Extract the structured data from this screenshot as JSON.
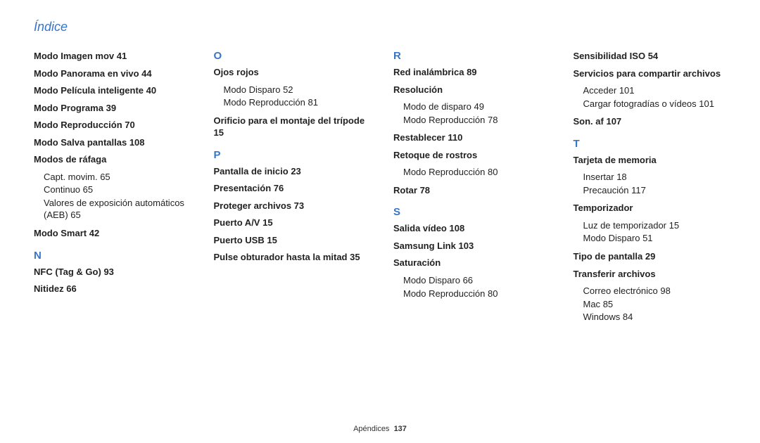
{
  "page": {
    "title": "Índice",
    "footer_label": "Apéndices",
    "footer_page": "137"
  },
  "style": {
    "accent_color": "#3a75c4",
    "body_color": "#222222",
    "bg_color": "#ffffff",
    "title_fontsize": 18,
    "letter_fontsize": 15,
    "entry_fontsize": 13,
    "footer_fontsize": 11
  },
  "columns": [
    {
      "items": [
        {
          "type": "entry",
          "title": "Modo Imagen mov",
          "page": "41"
        },
        {
          "type": "entry",
          "title": "Modo Panorama en vivo",
          "page": "44"
        },
        {
          "type": "entry",
          "title": "Modo Película inteligente",
          "page": "40"
        },
        {
          "type": "entry",
          "title": "Modo Programa",
          "page": "39"
        },
        {
          "type": "entry",
          "title": "Modo Reproducción",
          "page": "70"
        },
        {
          "type": "entry",
          "title": "Modo Salva pantallas",
          "page": "108"
        },
        {
          "type": "entry",
          "title": "Modos de ráfaga",
          "subs": [
            {
              "label": "Capt. movim.",
              "page": "65"
            },
            {
              "label": "Continuo",
              "page": "65"
            },
            {
              "label": "Valores de exposición automáticos (AEB)",
              "page": "65"
            }
          ]
        },
        {
          "type": "entry",
          "title": "Modo Smart",
          "page": "42"
        },
        {
          "type": "letter",
          "letter": "N"
        },
        {
          "type": "entry",
          "title": "NFC (Tag & Go)",
          "page": "93"
        },
        {
          "type": "entry",
          "title": "Nitidez",
          "page": "66"
        }
      ]
    },
    {
      "items": [
        {
          "type": "letter",
          "letter": "O"
        },
        {
          "type": "entry",
          "title": "Ojos rojos",
          "subs": [
            {
              "label": "Modo Disparo",
              "page": "52"
            },
            {
              "label": "Modo Reproducción",
              "page": "81"
            }
          ]
        },
        {
          "type": "entry",
          "title": "Orificio para el montaje del trípode",
          "page": "15"
        },
        {
          "type": "letter",
          "letter": "P"
        },
        {
          "type": "entry",
          "title": "Pantalla de inicio",
          "page": "23"
        },
        {
          "type": "entry",
          "title": "Presentación",
          "page": "76"
        },
        {
          "type": "entry",
          "title": "Proteger archivos",
          "page": "73"
        },
        {
          "type": "entry",
          "title": "Puerto A/V",
          "page": "15"
        },
        {
          "type": "entry",
          "title": "Puerto USB",
          "page": "15"
        },
        {
          "type": "entry",
          "title": "Pulse obturador hasta la mitad",
          "page": "35"
        }
      ]
    },
    {
      "items": [
        {
          "type": "letter",
          "letter": "R"
        },
        {
          "type": "entry",
          "title": "Red inalámbrica",
          "page": "89"
        },
        {
          "type": "entry",
          "title": "Resolución",
          "subs": [
            {
              "label": "Modo de disparo",
              "page": "49"
            },
            {
              "label": "Modo Reproducción",
              "page": "78"
            }
          ]
        },
        {
          "type": "entry",
          "title": "Restablecer",
          "page": "110"
        },
        {
          "type": "entry",
          "title": "Retoque de rostros",
          "subs": [
            {
              "label": "Modo Reproducción",
              "page": "80"
            }
          ]
        },
        {
          "type": "entry",
          "title": "Rotar",
          "page": "78"
        },
        {
          "type": "letter",
          "letter": "S"
        },
        {
          "type": "entry",
          "title": "Salida vídeo",
          "page": "108"
        },
        {
          "type": "entry",
          "title": "Samsung Link",
          "page": "103"
        },
        {
          "type": "entry",
          "title": "Saturación",
          "subs": [
            {
              "label": "Modo Disparo",
              "page": "66"
            },
            {
              "label": "Modo Reproducción",
              "page": "80"
            }
          ]
        }
      ]
    },
    {
      "items": [
        {
          "type": "entry",
          "title": "Sensibilidad ISO",
          "page": "54"
        },
        {
          "type": "entry",
          "title": "Servicios para compartir archivos",
          "subs": [
            {
              "label": "Acceder",
              "page": "101"
            },
            {
              "label": "Cargar fotogradías o vídeos",
              "page": "101"
            }
          ]
        },
        {
          "type": "entry",
          "title": "Son. af",
          "page": "107"
        },
        {
          "type": "letter",
          "letter": "T"
        },
        {
          "type": "entry",
          "title": "Tarjeta de memoria",
          "subs": [
            {
              "label": "Insertar",
              "page": "18"
            },
            {
              "label": "Precaución",
              "page": "117"
            }
          ]
        },
        {
          "type": "entry",
          "title": "Temporizador",
          "subs": [
            {
              "label": "Luz de temporizador",
              "page": "15"
            },
            {
              "label": "Modo Disparo",
              "page": "51"
            }
          ]
        },
        {
          "type": "entry",
          "title": "Tipo de pantalla",
          "page": "29"
        },
        {
          "type": "entry",
          "title": "Transferir archivos",
          "subs": [
            {
              "label": "Correo electrónico",
              "page": "98"
            },
            {
              "label": "Mac",
              "page": "85"
            },
            {
              "label": "Windows",
              "page": "84"
            }
          ]
        }
      ]
    }
  ]
}
